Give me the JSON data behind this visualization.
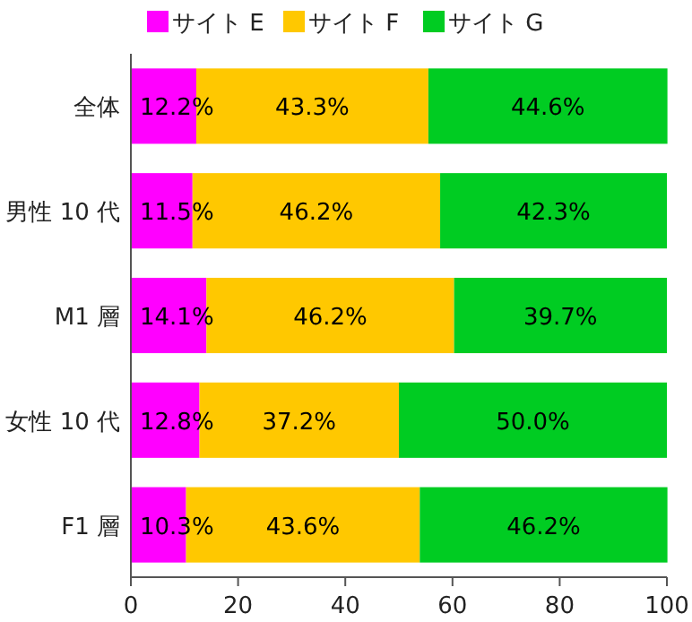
{
  "chart_data": {
    "type": "bar",
    "orientation": "horizontal",
    "stacked": true,
    "legend": "top",
    "categories": [
      "全体",
      "男性 10 代",
      "M1 層",
      "女性 10 代",
      "F1 層"
    ],
    "series": [
      {
        "name": "サイト E",
        "color": "#ff00ff",
        "values": [
          12.2,
          11.5,
          14.1,
          12.8,
          10.3
        ],
        "value_labels": [
          "12.2%",
          "11.5%",
          "14.1%",
          "12.8%",
          "10.3%"
        ]
      },
      {
        "name": "サイト F",
        "color": "#ffc800",
        "values": [
          43.3,
          46.2,
          46.2,
          37.2,
          43.6
        ],
        "value_labels": [
          "43.3%",
          "46.2%",
          "46.2%",
          "37.2%",
          "43.6%"
        ]
      },
      {
        "name": "サイト G",
        "color": "#00cc22",
        "values": [
          44.6,
          42.3,
          39.7,
          50.0,
          46.2
        ],
        "value_labels": [
          "44.6%",
          "42.3%",
          "39.7%",
          "50.0%",
          "46.2%"
        ]
      }
    ],
    "xlim": [
      0,
      100
    ],
    "xticks": [
      0,
      20,
      40,
      60,
      80,
      100
    ],
    "grid": false
  }
}
